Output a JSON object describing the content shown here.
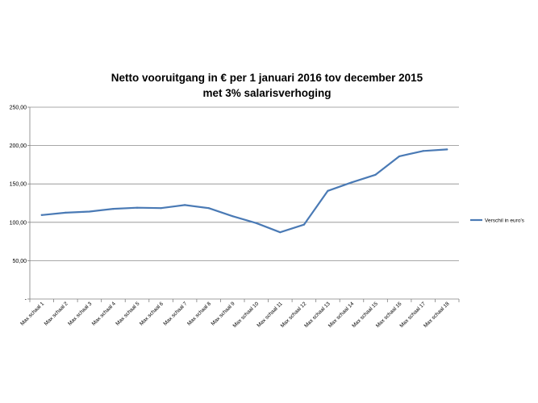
{
  "chart_data": {
    "type": "line",
    "title": "Netto vooruitgang in €  per 1 januari 2016 tov december 2015",
    "subtitle": "met 3% salarisverhoging",
    "categories": [
      "Max schaal 1",
      "Max schaal 2",
      "Max schaal 3",
      "Max schaal 4",
      "Max schaal 5",
      "Max schaal 6",
      "Max schaal 7",
      "Max schaal 8",
      "Max schaal 9",
      "Max schaal 10",
      "Max schaal 11",
      "Max schaal 12",
      "Max schaal 13",
      "Max schaal 14",
      "Max schaal 15",
      "Max schaal 16",
      "Max schaal 17",
      "Max schaal 18"
    ],
    "series": [
      {
        "name": "Verschil in euro's",
        "color": "#4a7ab5",
        "values": [
          109.5,
          112.5,
          114,
          117.5,
          119,
          118.5,
          122.5,
          118.5,
          108,
          99,
          87,
          97,
          141,
          152,
          162,
          186,
          193,
          195
        ]
      }
    ],
    "yticks": [
      "250,00",
      "200,00",
      "150,00",
      "100,00",
      "50,00",
      "-"
    ],
    "ylim": [
      0,
      250
    ],
    "grid": true,
    "legend_position": "right"
  }
}
